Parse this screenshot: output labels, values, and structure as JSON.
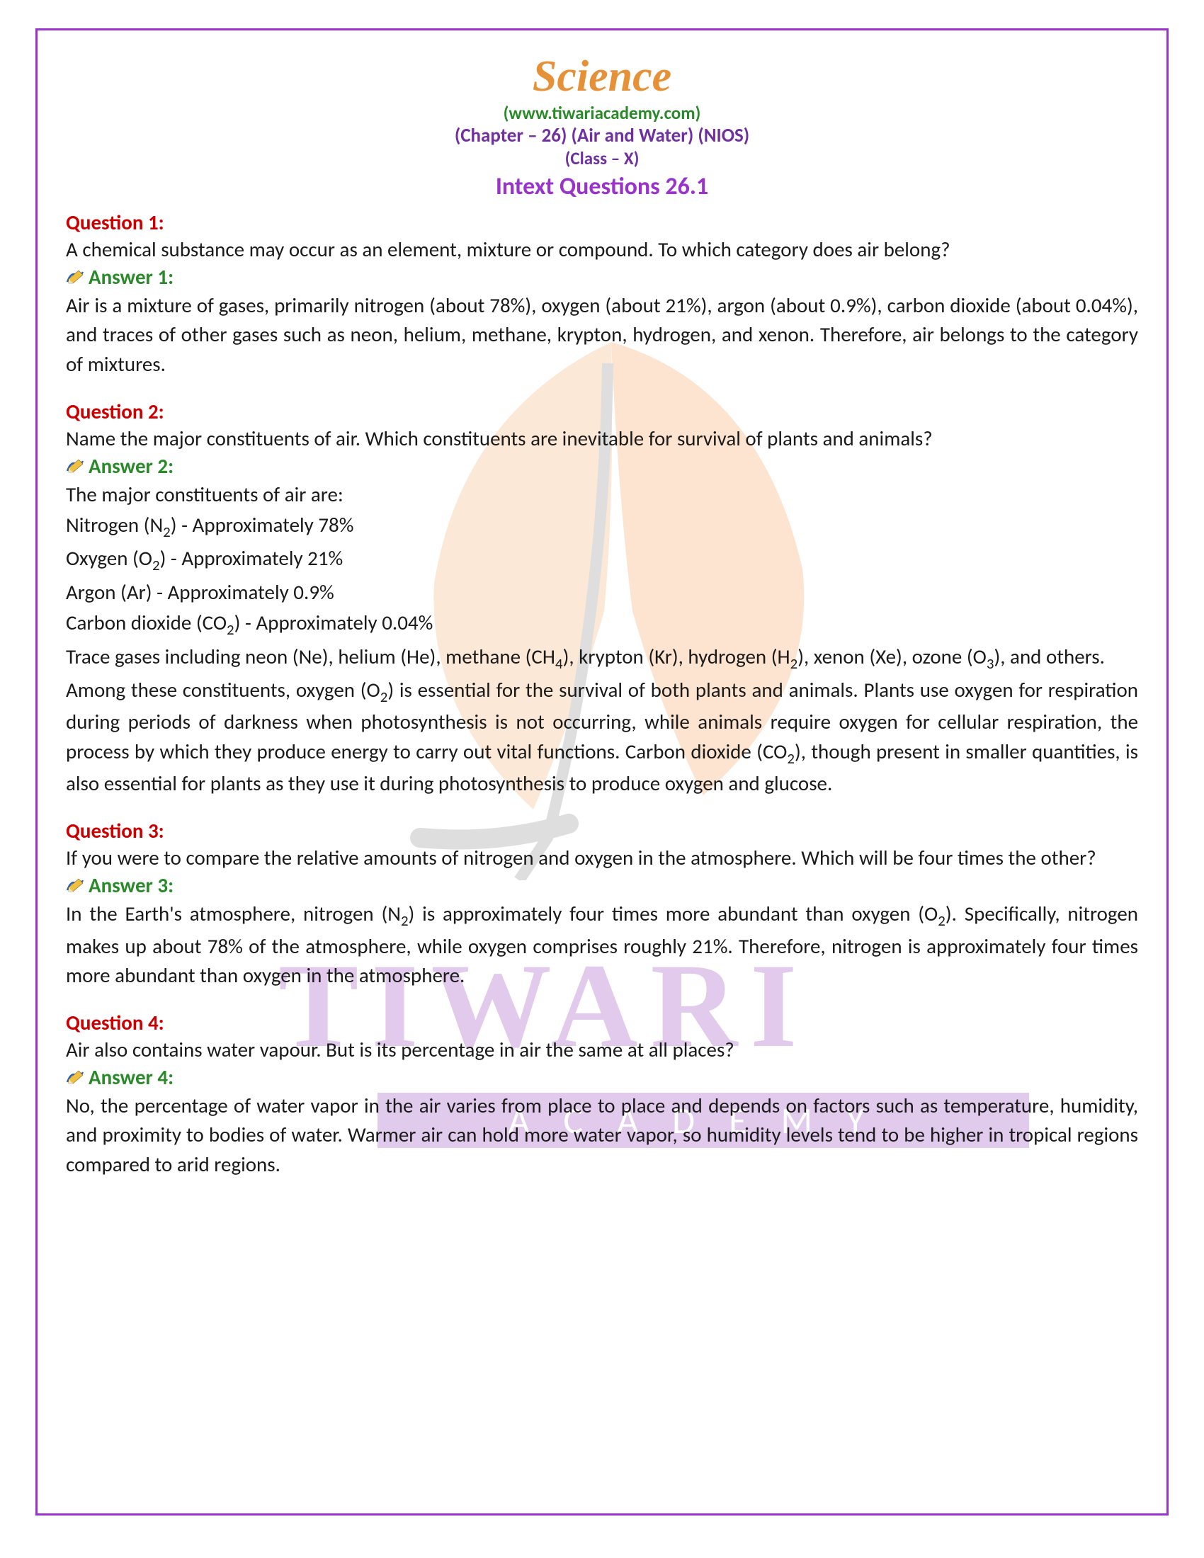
{
  "colors": {
    "border": "#9933cc",
    "title": "#e69138",
    "website": "#2a8a2a",
    "chapter": "#7030a0",
    "class": "#7030a0",
    "section": "#9933cc",
    "question_label": "#cc0000",
    "question_text": "#1a1a1a",
    "answer_label": "#2a8a2a",
    "answer_text": "#1a1a1a",
    "watermark_text": "#c9a0dc",
    "watermark_band_bg": "#c9a0dc",
    "watermark_band_text": "#ffffff",
    "leaf_orange": "#f5a15a",
    "leaf_stem": "#8a8a8a"
  },
  "fonts": {
    "title_family": "Lucida Calligraphy, Brush Script MT, cursive",
    "body_family": "Calibri, Segoe UI, Arial, sans-serif",
    "title_size": 62,
    "website_size": 25,
    "chapter_size": 27,
    "class_size": 25,
    "section_size": 34,
    "label_size": 29,
    "body_size": 29
  },
  "watermark": {
    "top_text": "TIWARI",
    "bottom_text": "ACADEMY"
  },
  "header": {
    "title": "Science",
    "website": "(www.tiwariacademy.com)",
    "chapter": "(Chapter – 26) (Air and Water) (NIOS)",
    "class_line": "(Class – X)",
    "section": "Intext Questions 26.1"
  },
  "qa": [
    {
      "q_label": "Question 1:",
      "q_text": "A chemical substance may occur as an element, mixture or compound. To which category does air belong?",
      "a_label": "Answer 1:",
      "a_text": "Air is a mixture of gases, primarily nitrogen (about 78%), oxygen (about 21%), argon (about 0.9%), carbon dioxide (about 0.04%), and traces of other gases such as neon, helium, methane, krypton, hydrogen, and xenon. Therefore, air belongs to the category of mixtures."
    },
    {
      "q_label": "Question 2:",
      "q_text": "Name the major constituents of air. Which constituents are inevitable for survival of plants and animals?",
      "a_label": "Answer 2:",
      "a_lines": [
        "The major constituents of air are:",
        "Nitrogen (N₂) - Approximately 78%",
        "Oxygen (O₂) - Approximately 21%",
        "Argon (Ar) - Approximately 0.9%",
        "Carbon dioxide (CO₂) - Approximately 0.04%",
        "Trace gases including neon (Ne), helium (He), methane (CH₄), krypton (Kr), hydrogen (H₂), xenon (Xe), ozone (O₃), and others.",
        "Among these constituents, oxygen (O₂) is essential for the survival of both plants and animals. Plants use oxygen for respiration during periods of darkness when photosynthesis is not occurring, while animals require oxygen for cellular respiration, the process by which they produce energy to carry out vital functions. Carbon dioxide (CO₂), though present in smaller quantities, is also essential for plants as they use it during photosynthesis to produce oxygen and glucose."
      ]
    },
    {
      "q_label": "Question 3:",
      "q_text": "If you were to compare the relative amounts of nitrogen and oxygen in the atmosphere. Which will be four times the other?",
      "a_label": "Answer 3:",
      "a_text": "In the Earth's atmosphere, nitrogen (N₂) is approximately four times more abundant than oxygen (O₂). Specifically, nitrogen makes up about 78% of the atmosphere, while oxygen comprises roughly 21%. Therefore, nitrogen is approximately four times more abundant than oxygen in the atmosphere."
    },
    {
      "q_label": "Question 4:",
      "q_text": "Air also contains water vapour. But is its percentage in air the same at all places?",
      "a_label": "Answer 4:",
      "a_text": "No, the percentage of water vapor in the air varies from place to place and depends on factors such as temperature, humidity, and proximity to bodies of water. Warmer air can hold more water vapor, so humidity levels tend to be higher in tropical regions compared to arid regions."
    }
  ]
}
